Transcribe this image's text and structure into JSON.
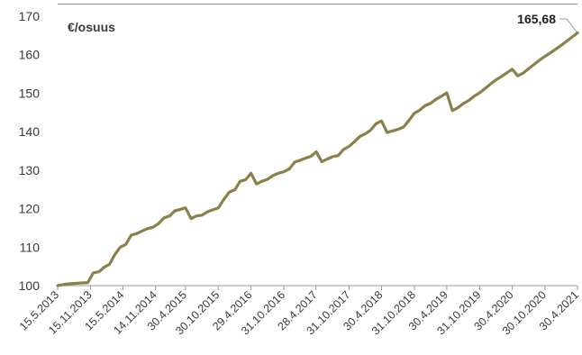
{
  "chart_data": {
    "type": "line",
    "unit_label": "€/osuus",
    "ylim": [
      100,
      170
    ],
    "yticks": [
      "100",
      "110",
      "120",
      "130",
      "140",
      "150",
      "160",
      "170"
    ],
    "xlim": [
      "2013-05-15",
      "2021-04-30"
    ],
    "xtick_labels": [
      "15.5.2013",
      "15.11.2013",
      "15.5.2014",
      "14.11.2014",
      "30.4.2015",
      "30.10.2015",
      "29.4.2016",
      "31.10.2016",
      "28.4.2017",
      "31.10.2017",
      "30.4.2018",
      "31.10.2018",
      "30.4.2019",
      "31.10.2019",
      "30.4.2020",
      "30.10.2020",
      "30.4.2021"
    ],
    "xtick_dates": [
      "2013-05-15",
      "2013-11-15",
      "2014-05-15",
      "2014-11-14",
      "2015-04-30",
      "2015-10-30",
      "2016-04-29",
      "2016-10-31",
      "2017-04-28",
      "2017-10-31",
      "2018-04-30",
      "2018-10-31",
      "2019-04-30",
      "2019-10-31",
      "2020-04-30",
      "2020-10-30",
      "2021-04-30"
    ],
    "series": [
      {
        "color": "#8b8049",
        "x": [
          "2013-05-15",
          "2013-06-30",
          "2013-07-31",
          "2013-08-31",
          "2013-09-30",
          "2013-10-31",
          "2013-11-30",
          "2013-12-31",
          "2014-01-31",
          "2014-02-28",
          "2014-03-31",
          "2014-04-30",
          "2014-05-31",
          "2014-06-30",
          "2014-07-31",
          "2014-08-31",
          "2014-09-30",
          "2014-10-31",
          "2014-11-30",
          "2014-12-31",
          "2015-01-31",
          "2015-02-28",
          "2015-03-31",
          "2015-04-30",
          "2015-05-31",
          "2015-06-30",
          "2015-07-31",
          "2015-08-31",
          "2015-09-30",
          "2015-10-31",
          "2015-11-30",
          "2015-12-31",
          "2016-01-31",
          "2016-02-29",
          "2016-03-31",
          "2016-04-30",
          "2016-05-31",
          "2016-06-30",
          "2016-07-31",
          "2016-08-31",
          "2016-09-30",
          "2016-10-31",
          "2016-11-30",
          "2016-12-31",
          "2017-01-31",
          "2017-02-28",
          "2017-03-31",
          "2017-04-30",
          "2017-05-31",
          "2017-06-30",
          "2017-07-31",
          "2017-08-31",
          "2017-09-30",
          "2017-10-31",
          "2017-11-30",
          "2017-12-31",
          "2018-01-31",
          "2018-02-28",
          "2018-03-31",
          "2018-04-30",
          "2018-05-31",
          "2018-06-30",
          "2018-07-31",
          "2018-08-31",
          "2018-09-30",
          "2018-10-31",
          "2018-11-30",
          "2018-12-31",
          "2019-01-31",
          "2019-02-28",
          "2019-03-31",
          "2019-04-30",
          "2019-05-31",
          "2019-06-30",
          "2019-07-31",
          "2019-08-31",
          "2019-09-30",
          "2019-10-31",
          "2019-11-30",
          "2019-12-31",
          "2020-01-31",
          "2020-02-29",
          "2020-03-31",
          "2020-04-30",
          "2020-05-31",
          "2020-06-30",
          "2020-07-31",
          "2020-08-31",
          "2020-09-30",
          "2020-10-31",
          "2020-11-30",
          "2020-12-31",
          "2021-01-31",
          "2021-02-28",
          "2021-03-31",
          "2021-04-30"
        ],
        "y": [
          100,
          100.4,
          100.5,
          100.6,
          100.7,
          100.8,
          103.3,
          103.6,
          104.8,
          105.5,
          108.1,
          110,
          110.7,
          113.1,
          113.5,
          114.2,
          114.8,
          115.2,
          116.1,
          117.6,
          118.1,
          119.4,
          119.8,
          120.2,
          117.4,
          118.1,
          118.3,
          119.2,
          119.7,
          120.2,
          122.4,
          124.3,
          124.9,
          127.1,
          127.5,
          129.2,
          126.4,
          127.1,
          127.6,
          128.6,
          129.2,
          129.6,
          130.3,
          132.1,
          132.6,
          133.1,
          133.6,
          134.8,
          132.2,
          132.9,
          133.5,
          133.8,
          135.4,
          136.2,
          137.4,
          138.8,
          139.5,
          140.4,
          142.1,
          142.8,
          139.8,
          140.2,
          140.6,
          141.2,
          142.9,
          144.8,
          145.6,
          146.8,
          147.4,
          148.4,
          149.2,
          150.1,
          145.5,
          146.2,
          147.3,
          148.1,
          149.2,
          150.1,
          151.2,
          152.4,
          153.5,
          154.3,
          155.3,
          156.2,
          154.5,
          155.2,
          156.4,
          157.5,
          158.6,
          159.6,
          160.5,
          161.5,
          162.5,
          163.5,
          164.6,
          165.68
        ]
      }
    ],
    "last_value_label": "165,68"
  }
}
